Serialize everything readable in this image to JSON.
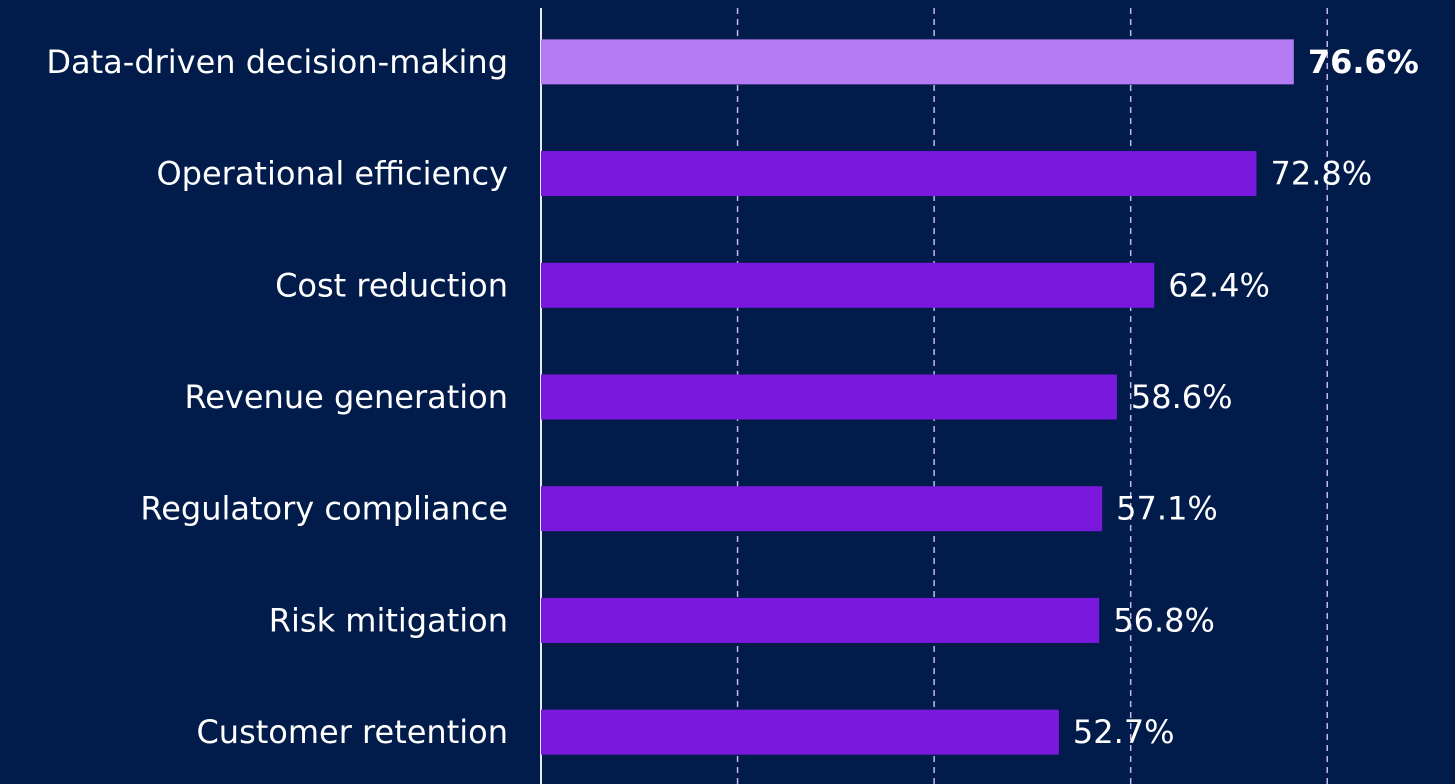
{
  "chart_data": {
    "type": "bar",
    "orientation": "horizontal",
    "categories": [
      "Data-driven decision-making",
      "Operational efficiency",
      "Cost reduction",
      "Revenue generation",
      "Regulatory compliance",
      "Risk mitigation",
      "Customer retention"
    ],
    "values": [
      76.6,
      72.8,
      62.4,
      58.6,
      57.1,
      56.8,
      52.7
    ],
    "value_labels": [
      "76.6%",
      "72.8%",
      "62.4%",
      "58.6%",
      "57.1%",
      "56.8%",
      "52.7%"
    ],
    "colors": [
      "#b57bf5",
      "#7a18de",
      "#7a18de",
      "#7a18de",
      "#7a18de",
      "#7a18de",
      "#7a18de"
    ],
    "xlim": [
      0,
      93
    ],
    "xticks": [
      0,
      20,
      40,
      60,
      80
    ],
    "grid": true
  }
}
